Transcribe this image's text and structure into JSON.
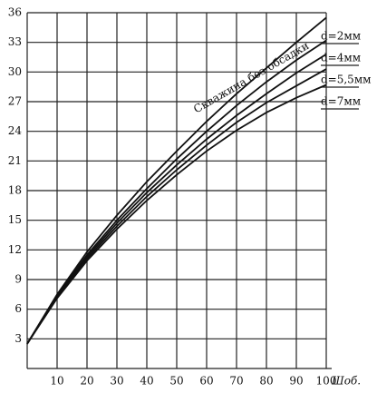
{
  "chart_data": {
    "type": "line",
    "x": [
      0,
      10,
      20,
      30,
      40,
      50,
      60,
      70,
      80,
      90,
      100
    ],
    "series": [
      {
        "name": "Скважина без обсадки",
        "color": "#111111",
        "values": [
          2.5,
          7.5,
          11.8,
          15.5,
          18.9,
          22.0,
          25.0,
          27.8,
          30.4,
          33.0,
          35.5
        ]
      },
      {
        "name": "d=2мм",
        "color": "#111111",
        "values": [
          2.5,
          7.4,
          11.5,
          15.0,
          18.2,
          21.2,
          24.0,
          26.6,
          29.0,
          31.2,
          33.2
        ]
      },
      {
        "name": "d=4мм",
        "color": "#111111",
        "values": [
          2.5,
          7.3,
          11.3,
          14.7,
          17.8,
          20.6,
          23.2,
          25.6,
          27.8,
          29.9,
          31.8
        ]
      },
      {
        "name": "d=5,5мм",
        "color": "#111111",
        "values": [
          2.5,
          7.2,
          11.1,
          14.4,
          17.4,
          20.1,
          22.6,
          24.9,
          26.9,
          28.6,
          30.3
        ]
      },
      {
        "name": "d=7мм",
        "color": "#111111",
        "values": [
          2.5,
          7.1,
          10.9,
          14.1,
          17.0,
          19.6,
          22.0,
          24.1,
          25.9,
          27.4,
          28.7
        ]
      }
    ],
    "x_label": "Шоб.",
    "xlim": [
      0,
      100
    ],
    "xticks": [
      10,
      20,
      30,
      40,
      50,
      60,
      70,
      80,
      90,
      100
    ],
    "ylim": [
      0,
      36
    ],
    "yticks": [
      3,
      6,
      9,
      12,
      15,
      18,
      21,
      24,
      27,
      30,
      33,
      36
    ],
    "grid": true
  }
}
